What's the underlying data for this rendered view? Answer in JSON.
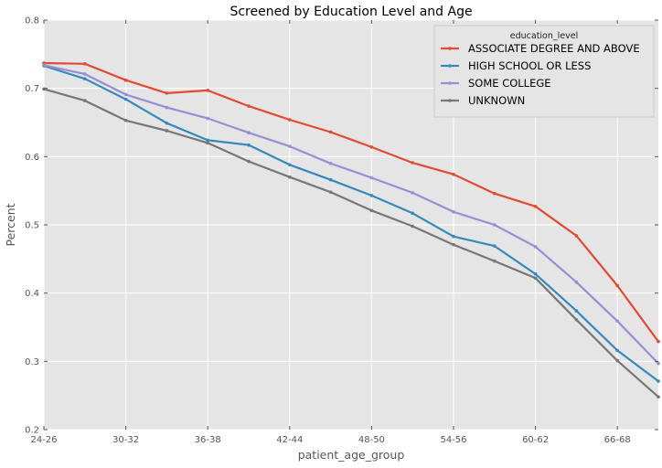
{
  "chart_data": {
    "type": "line",
    "title": "Screened by Education Level and Age",
    "xlabel": "patient_age_group",
    "ylabel": "Percent",
    "ylim": [
      0.2,
      0.8
    ],
    "yticks": [
      "0.2",
      "0.3",
      "0.4",
      "0.5",
      "0.6",
      "0.7",
      "0.8"
    ],
    "categories": [
      "24-26",
      "27-29",
      "30-32",
      "33-35",
      "36-38",
      "39-41",
      "42-44",
      "45-47",
      "48-50",
      "51-53",
      "54-56",
      "57-59",
      "60-62",
      "63-65",
      "66-68",
      "69-71"
    ],
    "xtick_labels": [
      "24-26",
      "",
      "30-32",
      "",
      "36-38",
      "",
      "42-44",
      "",
      "48-50",
      "",
      "54-56",
      "",
      "60-62",
      "",
      "66-68",
      ""
    ],
    "grid": true,
    "legend": {
      "title": "education_level",
      "placement": "top-right"
    },
    "series": [
      {
        "name": "ASSOCIATE DEGREE AND ABOVE",
        "color": "#e24a33",
        "values": [
          0.737,
          0.736,
          0.712,
          0.693,
          0.697,
          0.674,
          0.654,
          0.636,
          0.614,
          0.591,
          0.574,
          0.546,
          0.527,
          0.484,
          0.411,
          0.329
        ]
      },
      {
        "name": "HIGH SCHOOL OR LESS",
        "color": "#348abd",
        "values": [
          0.733,
          0.714,
          0.684,
          0.649,
          0.624,
          0.617,
          0.588,
          0.566,
          0.543,
          0.517,
          0.483,
          0.469,
          0.428,
          0.374,
          0.316,
          0.271
        ]
      },
      {
        "name": "SOME COLLEGE",
        "color": "#988ed5",
        "values": [
          0.734,
          0.721,
          0.691,
          0.672,
          0.656,
          0.635,
          0.615,
          0.59,
          0.569,
          0.547,
          0.519,
          0.5,
          0.468,
          0.416,
          0.359,
          0.297
        ]
      },
      {
        "name": "UNKNOWN",
        "color": "#777777",
        "values": [
          0.699,
          0.682,
          0.653,
          0.638,
          0.62,
          0.593,
          0.57,
          0.548,
          0.521,
          0.498,
          0.471,
          0.447,
          0.422,
          0.361,
          0.301,
          0.248
        ]
      }
    ]
  }
}
